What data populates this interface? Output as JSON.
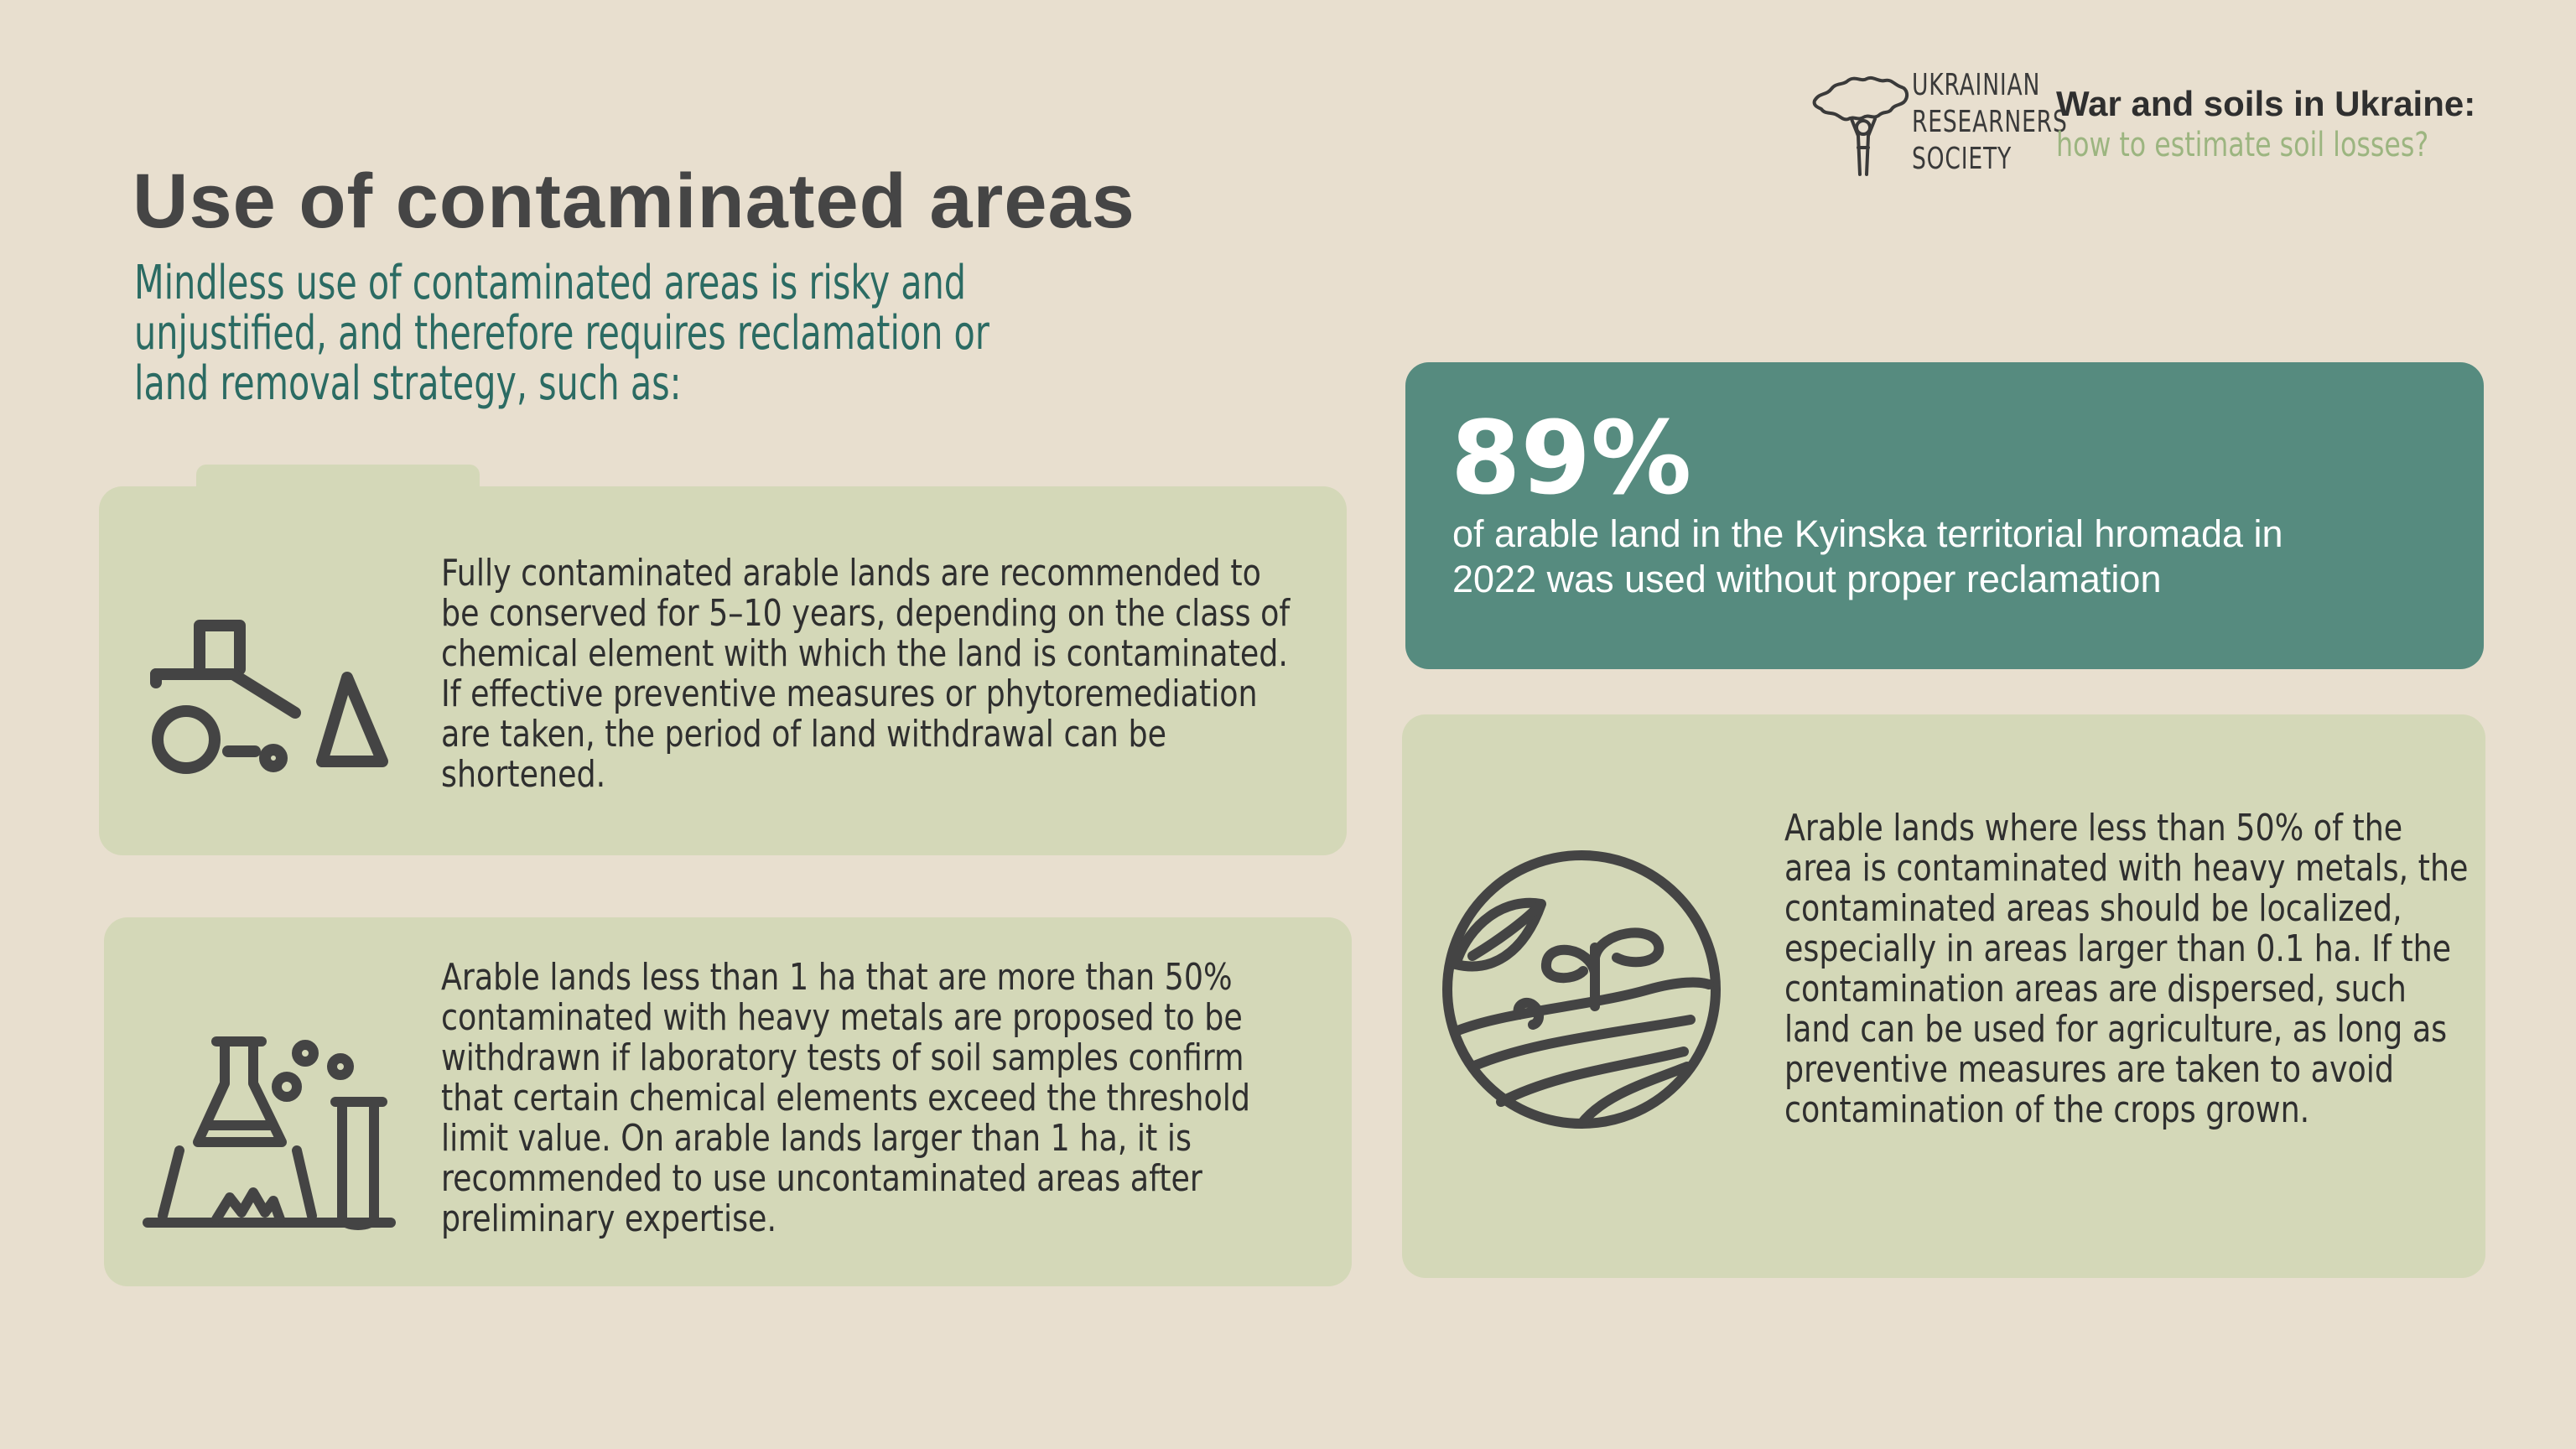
{
  "header": {
    "logo_lines": [
      "UKRAINIAN",
      "RESEARNERS",
      "SOCIETY"
    ],
    "brand_title": "War and soils in Ukraine:",
    "brand_subtitle": "how to estimate soil losses?"
  },
  "main": {
    "title": "Use of contaminated areas",
    "intro": "Mindless use of contaminated areas is risky and unjustified, and therefore requires reclamation or land removal strategy, such as:"
  },
  "cards": [
    {
      "icon": "tractor-icon",
      "text": "Fully contaminated arable lands are recommended to be conserved for 5–10 years, depending on the class of chemical element with which the land is contaminated. If effective preventive measures or phytoremediation are taken, the period of land withdrawal can be shortened."
    },
    {
      "icon": "laboratory-flask-icon",
      "text": "Arable lands less than 1 ha that are more than 50% contaminated with heavy metals are proposed to be withdrawn if laboratory tests of soil samples confirm that certain chemical elements exceed the threshold limit value. On arable lands larger than 1 ha, it is recommended to use uncontaminated areas after preliminary expertise."
    },
    {
      "icon": "sprout-field-icon",
      "text": "Arable lands where less than 50% of the area is contaminated with heavy metals, the contaminated areas should be localized, especially in areas larger than 0.1 ha. If the contamination areas are dispersed, such land can be used for agriculture, as long as preventive measures are taken to avoid contamination of the crops grown."
    }
  ],
  "stat": {
    "value": "89%",
    "description": "of arable land in the Kyinska territorial hromada in 2022 was used without proper reclamation"
  },
  "colors": {
    "background": "#e8dfcf",
    "card": "#d4d8b8",
    "stat_card": "#568b7f",
    "intro_text": "#2b6b63",
    "subtitle_accent": "#9cb580"
  }
}
